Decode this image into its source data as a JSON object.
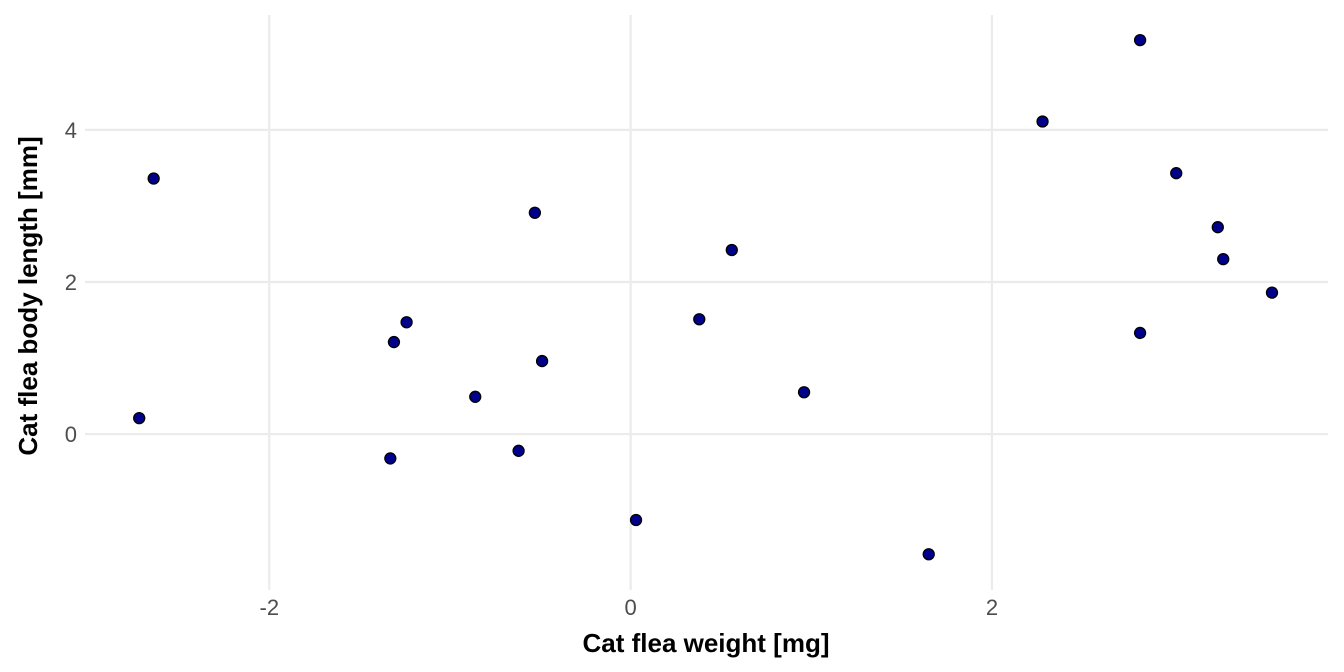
{
  "chart_data": {
    "type": "scatter",
    "title": "",
    "xlabel": "Cat flea weight [mg]",
    "ylabel": "Cat flea body length [mm]",
    "xlim": [
      -3.02,
      3.86
    ],
    "ylim": [
      -2.05,
      5.51
    ],
    "xticks": [
      -2,
      0,
      2
    ],
    "yticks": [
      0,
      2,
      4
    ],
    "xtick_labels": [
      "-2",
      "0",
      "2"
    ],
    "ytick_labels": [
      "0",
      "2",
      "4"
    ],
    "grid": true,
    "point_fill": "#00008b",
    "point_stroke": "#000000",
    "grid_color": "#ebebeb",
    "points": [
      {
        "x": -2.64,
        "y": 3.36
      },
      {
        "x": -2.72,
        "y": 0.21
      },
      {
        "x": -1.31,
        "y": 1.21
      },
      {
        "x": -1.24,
        "y": 1.47
      },
      {
        "x": -1.33,
        "y": -0.32
      },
      {
        "x": -0.86,
        "y": 0.49
      },
      {
        "x": -0.62,
        "y": -0.22
      },
      {
        "x": -0.53,
        "y": 2.91
      },
      {
        "x": -0.49,
        "y": 0.96
      },
      {
        "x": 0.03,
        "y": -1.13
      },
      {
        "x": 0.38,
        "y": 1.51
      },
      {
        "x": 0.56,
        "y": 2.42
      },
      {
        "x": 0.96,
        "y": 0.55
      },
      {
        "x": 1.65,
        "y": -1.58
      },
      {
        "x": 2.28,
        "y": 4.11
      },
      {
        "x": 2.82,
        "y": 5.18
      },
      {
        "x": 2.82,
        "y": 1.33
      },
      {
        "x": 3.02,
        "y": 3.43
      },
      {
        "x": 3.25,
        "y": 2.72
      },
      {
        "x": 3.28,
        "y": 2.3
      },
      {
        "x": 3.55,
        "y": 1.86
      }
    ]
  }
}
